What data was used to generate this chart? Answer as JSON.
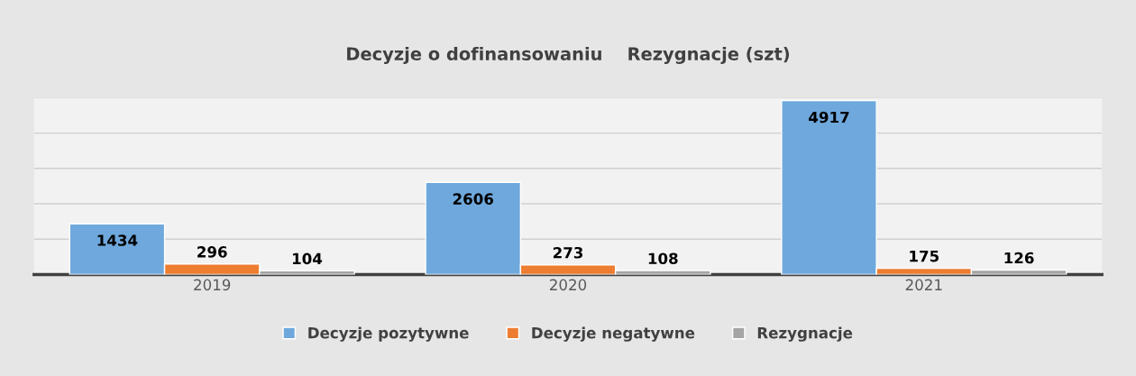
{
  "chart_data": {
    "type": "bar",
    "title": "Decyzje o dofinansowaniu    Rezygnacje (szt)",
    "categories": [
      "2019",
      "2020",
      "2021"
    ],
    "series": [
      {
        "name": "Decyzje pozytywne",
        "color": "#6fa8dc",
        "values": [
          1434,
          2606,
          4917
        ]
      },
      {
        "name": "Decyzje negatywne",
        "color": "#ed7d31",
        "values": [
          296,
          273,
          175
        ]
      },
      {
        "name": "Rezygnacje",
        "color": "#a5a5a5",
        "values": [
          104,
          108,
          126
        ]
      }
    ],
    "ylim": [
      0,
      5000
    ],
    "yticks": [
      {
        "value": 0,
        "label": null
      },
      {
        "value": 1000,
        "label": null
      },
      {
        "value": 2000,
        "label": null
      },
      {
        "value": 3000,
        "label": null
      },
      {
        "value": 4000,
        "label": null
      },
      {
        "value": 5000,
        "label": null
      }
    ],
    "tick_labels": "x",
    "grid": "y",
    "data_labels": true,
    "legend": "bottom"
  }
}
